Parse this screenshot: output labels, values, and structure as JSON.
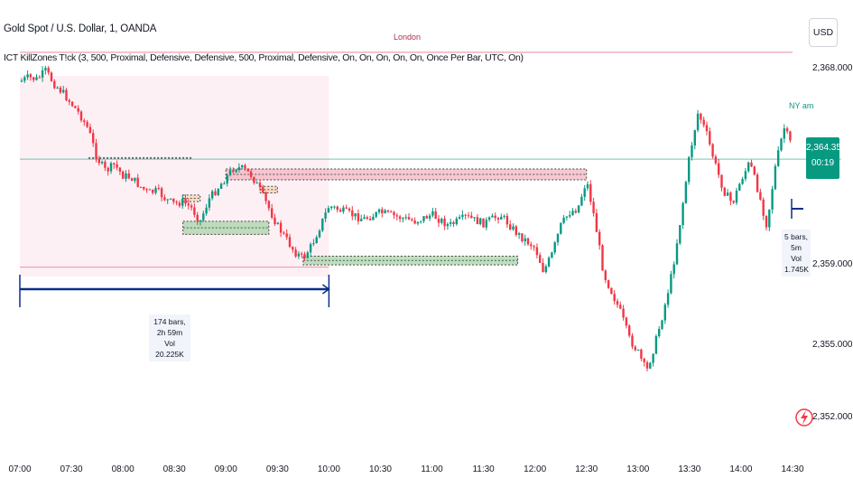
{
  "header": {
    "symbol_title": "Gold Spot / U.S. Dollar, 1, OANDA",
    "indicator_legend": "ICT KillZones T!ck (3, 500, Proximal, Defensive, Defensive, 500, Proximal, Defensive, On, On, On, On, On, Once Per Bar, UTC, On)"
  },
  "currency_button": "USD",
  "last_price": {
    "value": "2,364.355",
    "countdown": "00:19"
  },
  "session_labels": {
    "london": "London",
    "ny_am": "NY am"
  },
  "measure_left": {
    "line1": "174 bars, 2h 59m",
    "line2": "Vol 20.225K"
  },
  "measure_right": {
    "line1": "5 bars, 5m",
    "line2": "Vol 1.745K"
  },
  "colors": {
    "up": "#089981",
    "down": "#f23645",
    "london_bg": "#fce4ec",
    "pink_zone": "#f4b6c2",
    "green_zone": "#a5d6a7",
    "orange_zone": "#fcd5b5",
    "measure": "#0b2f8a",
    "session_line": "#e8a0b0"
  },
  "chart_data": {
    "type": "candlestick",
    "title": "Gold Spot / U.S. Dollar, 1, OANDA",
    "x_tick_labels": [
      "07:00",
      "07:30",
      "08:00",
      "08:30",
      "09:00",
      "09:30",
      "10:00",
      "10:30",
      "11:00",
      "11:30",
      "12:00",
      "12:30",
      "13:00",
      "13:30",
      "14:00",
      "14:30"
    ],
    "y_tick_labels": [
      "2,368.000",
      "2,359.000",
      "2,355.000",
      "2,352.000"
    ],
    "y_ticks": [
      2368,
      2359,
      2355,
      2352
    ],
    "last_price": 2364.355,
    "price_path": [
      [
        "07:00",
        2367.4
      ],
      [
        "07:05",
        2367.6
      ],
      [
        "07:10",
        2367.5
      ],
      [
        "07:15",
        2367.9
      ],
      [
        "07:20",
        2367.3
      ],
      [
        "07:25",
        2366.9
      ],
      [
        "07:30",
        2366.4
      ],
      [
        "07:35",
        2365.9
      ],
      [
        "07:40",
        2365.2
      ],
      [
        "07:45",
        2363.9
      ],
      [
        "07:50",
        2363.3
      ],
      [
        "07:55",
        2363.6
      ],
      [
        "08:00",
        2363.1
      ],
      [
        "08:05",
        2363.0
      ],
      [
        "08:10",
        2362.6
      ],
      [
        "08:15",
        2362.3
      ],
      [
        "08:20",
        2362.4
      ],
      [
        "08:25",
        2362.0
      ],
      [
        "08:30",
        2361.8
      ],
      [
        "08:35",
        2361.9
      ],
      [
        "08:40",
        2361.6
      ],
      [
        "08:45",
        2361.0
      ],
      [
        "08:50",
        2362.0
      ],
      [
        "08:55",
        2362.5
      ],
      [
        "09:00",
        2363.0
      ],
      [
        "09:05",
        2363.5
      ],
      [
        "09:10",
        2363.4
      ],
      [
        "09:15",
        2363.1
      ],
      [
        "09:20",
        2362.4
      ],
      [
        "09:25",
        2361.6
      ],
      [
        "09:30",
        2360.8
      ],
      [
        "09:35",
        2360.2
      ],
      [
        "09:40",
        2359.6
      ],
      [
        "09:45",
        2359.3
      ],
      [
        "09:50",
        2359.9
      ],
      [
        "09:55",
        2360.8
      ],
      [
        "10:00",
        2361.7
      ],
      [
        "10:10",
        2361.4
      ],
      [
        "10:20",
        2361.1
      ],
      [
        "10:30",
        2361.4
      ],
      [
        "10:40",
        2361.2
      ],
      [
        "10:50",
        2361.0
      ],
      [
        "11:00",
        2361.3
      ],
      [
        "11:10",
        2360.8
      ],
      [
        "11:20",
        2361.2
      ],
      [
        "11:30",
        2360.9
      ],
      [
        "11:40",
        2361.3
      ],
      [
        "11:50",
        2360.4
      ],
      [
        "12:00",
        2359.8
      ],
      [
        "12:05",
        2358.7
      ],
      [
        "12:10",
        2359.5
      ],
      [
        "12:15",
        2360.8
      ],
      [
        "12:20",
        2361.4
      ],
      [
        "12:25",
        2361.6
      ],
      [
        "12:30",
        2362.9
      ],
      [
        "12:35",
        2361.0
      ],
      [
        "12:40",
        2358.6
      ],
      [
        "12:45",
        2357.7
      ],
      [
        "12:50",
        2356.8
      ],
      [
        "12:55",
        2355.6
      ],
      [
        "13:00",
        2355.0
      ],
      [
        "13:05",
        2354.1
      ],
      [
        "13:10",
        2355.4
      ],
      [
        "13:15",
        2356.9
      ],
      [
        "13:20",
        2358.7
      ],
      [
        "13:25",
        2361.2
      ],
      [
        "13:30",
        2364.0
      ],
      [
        "13:35",
        2366.0
      ],
      [
        "13:40",
        2365.0
      ],
      [
        "13:45",
        2363.6
      ],
      [
        "13:50",
        2362.4
      ],
      [
        "13:55",
        2361.8
      ],
      [
        "14:00",
        2362.9
      ],
      [
        "14:05",
        2363.7
      ],
      [
        "14:10",
        2362.4
      ],
      [
        "14:15",
        2360.8
      ],
      [
        "14:20",
        2363.5
      ],
      [
        "14:25",
        2365.3
      ],
      [
        "14:30",
        2364.355
      ]
    ],
    "zones": [
      {
        "type": "bearish",
        "from": "09:00",
        "to": "12:30",
        "low": 2362.9,
        "high": 2363.4
      },
      {
        "type": "bullish",
        "from": "08:35",
        "to": "09:25",
        "low": 2360.4,
        "high": 2361.0
      },
      {
        "type": "bullish",
        "from": "09:45",
        "to": "11:50",
        "low": 2359.0,
        "high": 2359.4
      },
      {
        "type": "bearish",
        "from": "08:35",
        "to": "08:45",
        "low": 2361.9,
        "high": 2362.2
      },
      {
        "type": "bearish",
        "from": "09:20",
        "to": "09:30",
        "low": 2362.3,
        "high": 2362.6
      }
    ],
    "levels": [
      {
        "name": "dotted",
        "from": "07:40",
        "to": "08:40",
        "value": 2363.9
      },
      {
        "name": "session",
        "from": "07:00",
        "to": "14:30",
        "value": 2368.75
      },
      {
        "name": "session",
        "from": "07:00",
        "to": "10:00",
        "value": 2358.9
      },
      {
        "name": "last",
        "from": "07:00",
        "to": "14:30",
        "value": 2363.85
      }
    ],
    "sessions": [
      {
        "name": "London",
        "from": "07:00",
        "to": "10:00"
      }
    ],
    "grid": false,
    "legend": "top-left"
  }
}
